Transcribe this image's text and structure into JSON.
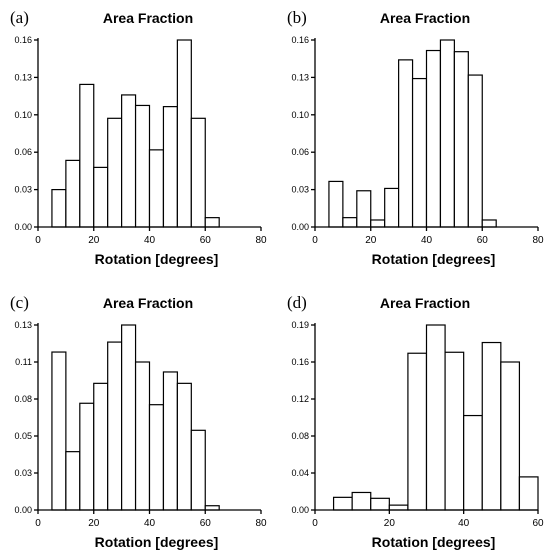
{
  "chart_data": [
    {
      "panel": "(a)",
      "type": "bar",
      "title": "Area Fraction",
      "xlabel": "Rotation [degrees]",
      "ylabel": "",
      "bin_width": 5,
      "bins_start": [
        5,
        10,
        15,
        20,
        25,
        30,
        35,
        40,
        45,
        50,
        55,
        60
      ],
      "values": [
        0.032,
        0.057,
        0.122,
        0.051,
        0.093,
        0.113,
        0.104,
        0.066,
        0.103,
        0.16,
        0.093,
        0.008
      ],
      "xlim": [
        0,
        80
      ],
      "ylim": [
        0,
        0.16
      ],
      "xticks": [
        "0",
        "20",
        "40",
        "60",
        "80"
      ],
      "xtick_values": [
        0,
        20,
        40,
        60,
        80
      ],
      "yticks": [
        "0.00",
        "0.03",
        "0.06",
        "0.10",
        "0.13",
        "0.16"
      ],
      "ytick_values": [
        0,
        0.032,
        0.064,
        0.096,
        0.128,
        0.16
      ]
    },
    {
      "panel": "(b)",
      "type": "bar",
      "title": "Area Fraction",
      "xlabel": "Rotation [degrees]",
      "ylabel": "",
      "bin_width": 5,
      "bins_start": [
        5,
        10,
        15,
        20,
        25,
        30,
        35,
        40,
        45,
        50,
        55,
        60
      ],
      "values": [
        0.039,
        0.008,
        0.031,
        0.006,
        0.033,
        0.143,
        0.127,
        0.151,
        0.16,
        0.15,
        0.13,
        0.006
      ],
      "xlim": [
        0,
        80
      ],
      "ylim": [
        0,
        0.16
      ],
      "xticks": [
        "0",
        "20",
        "40",
        "60",
        "80"
      ],
      "xtick_values": [
        0,
        20,
        40,
        60,
        80
      ],
      "yticks": [
        "0.00",
        "0.03",
        "0.06",
        "0.10",
        "0.13",
        "0.16"
      ],
      "ytick_values": [
        0,
        0.032,
        0.064,
        0.096,
        0.128,
        0.16
      ]
    },
    {
      "panel": "(c)",
      "type": "bar",
      "title": "Area Fraction",
      "xlabel": "Rotation [degrees]",
      "ylabel": "",
      "bin_width": 5,
      "bins_start": [
        5,
        10,
        15,
        20,
        25,
        30,
        35,
        40,
        45,
        50,
        55,
        60
      ],
      "values": [
        0.111,
        0.041,
        0.075,
        0.089,
        0.118,
        0.13,
        0.104,
        0.074,
        0.097,
        0.089,
        0.056,
        0.003
      ],
      "xlim": [
        0,
        80
      ],
      "ylim": [
        0,
        0.13
      ],
      "xticks": [
        "0",
        "20",
        "40",
        "60",
        "80"
      ],
      "xtick_values": [
        0,
        20,
        40,
        60,
        80
      ],
      "yticks": [
        "0.00",
        "0.03",
        "0.05",
        "0.08",
        "0.11",
        "0.13"
      ],
      "ytick_values": [
        0,
        0.026,
        0.052,
        0.078,
        0.104,
        0.13
      ]
    },
    {
      "panel": "(d)",
      "type": "bar",
      "title": "Area Fraction",
      "xlabel": "Rotation [degrees]",
      "ylabel": "",
      "bin_width": 5,
      "bins_start": [
        5,
        10,
        15,
        20,
        25,
        30,
        35,
        40,
        45,
        50,
        55
      ],
      "values": [
        0.013,
        0.018,
        0.012,
        0.005,
        0.161,
        0.19,
        0.162,
        0.097,
        0.172,
        0.152,
        0.034
      ],
      "xlim": [
        0,
        60
      ],
      "ylim": [
        0,
        0.19
      ],
      "xticks": [
        "0",
        "20",
        "40",
        "60"
      ],
      "xtick_values": [
        0,
        20,
        40,
        60
      ],
      "yticks": [
        "0.00",
        "0.04",
        "0.08",
        "0.12",
        "0.16",
        "0.19"
      ],
      "ytick_values": [
        0,
        0.038,
        0.076,
        0.114,
        0.152,
        0.19
      ]
    }
  ]
}
